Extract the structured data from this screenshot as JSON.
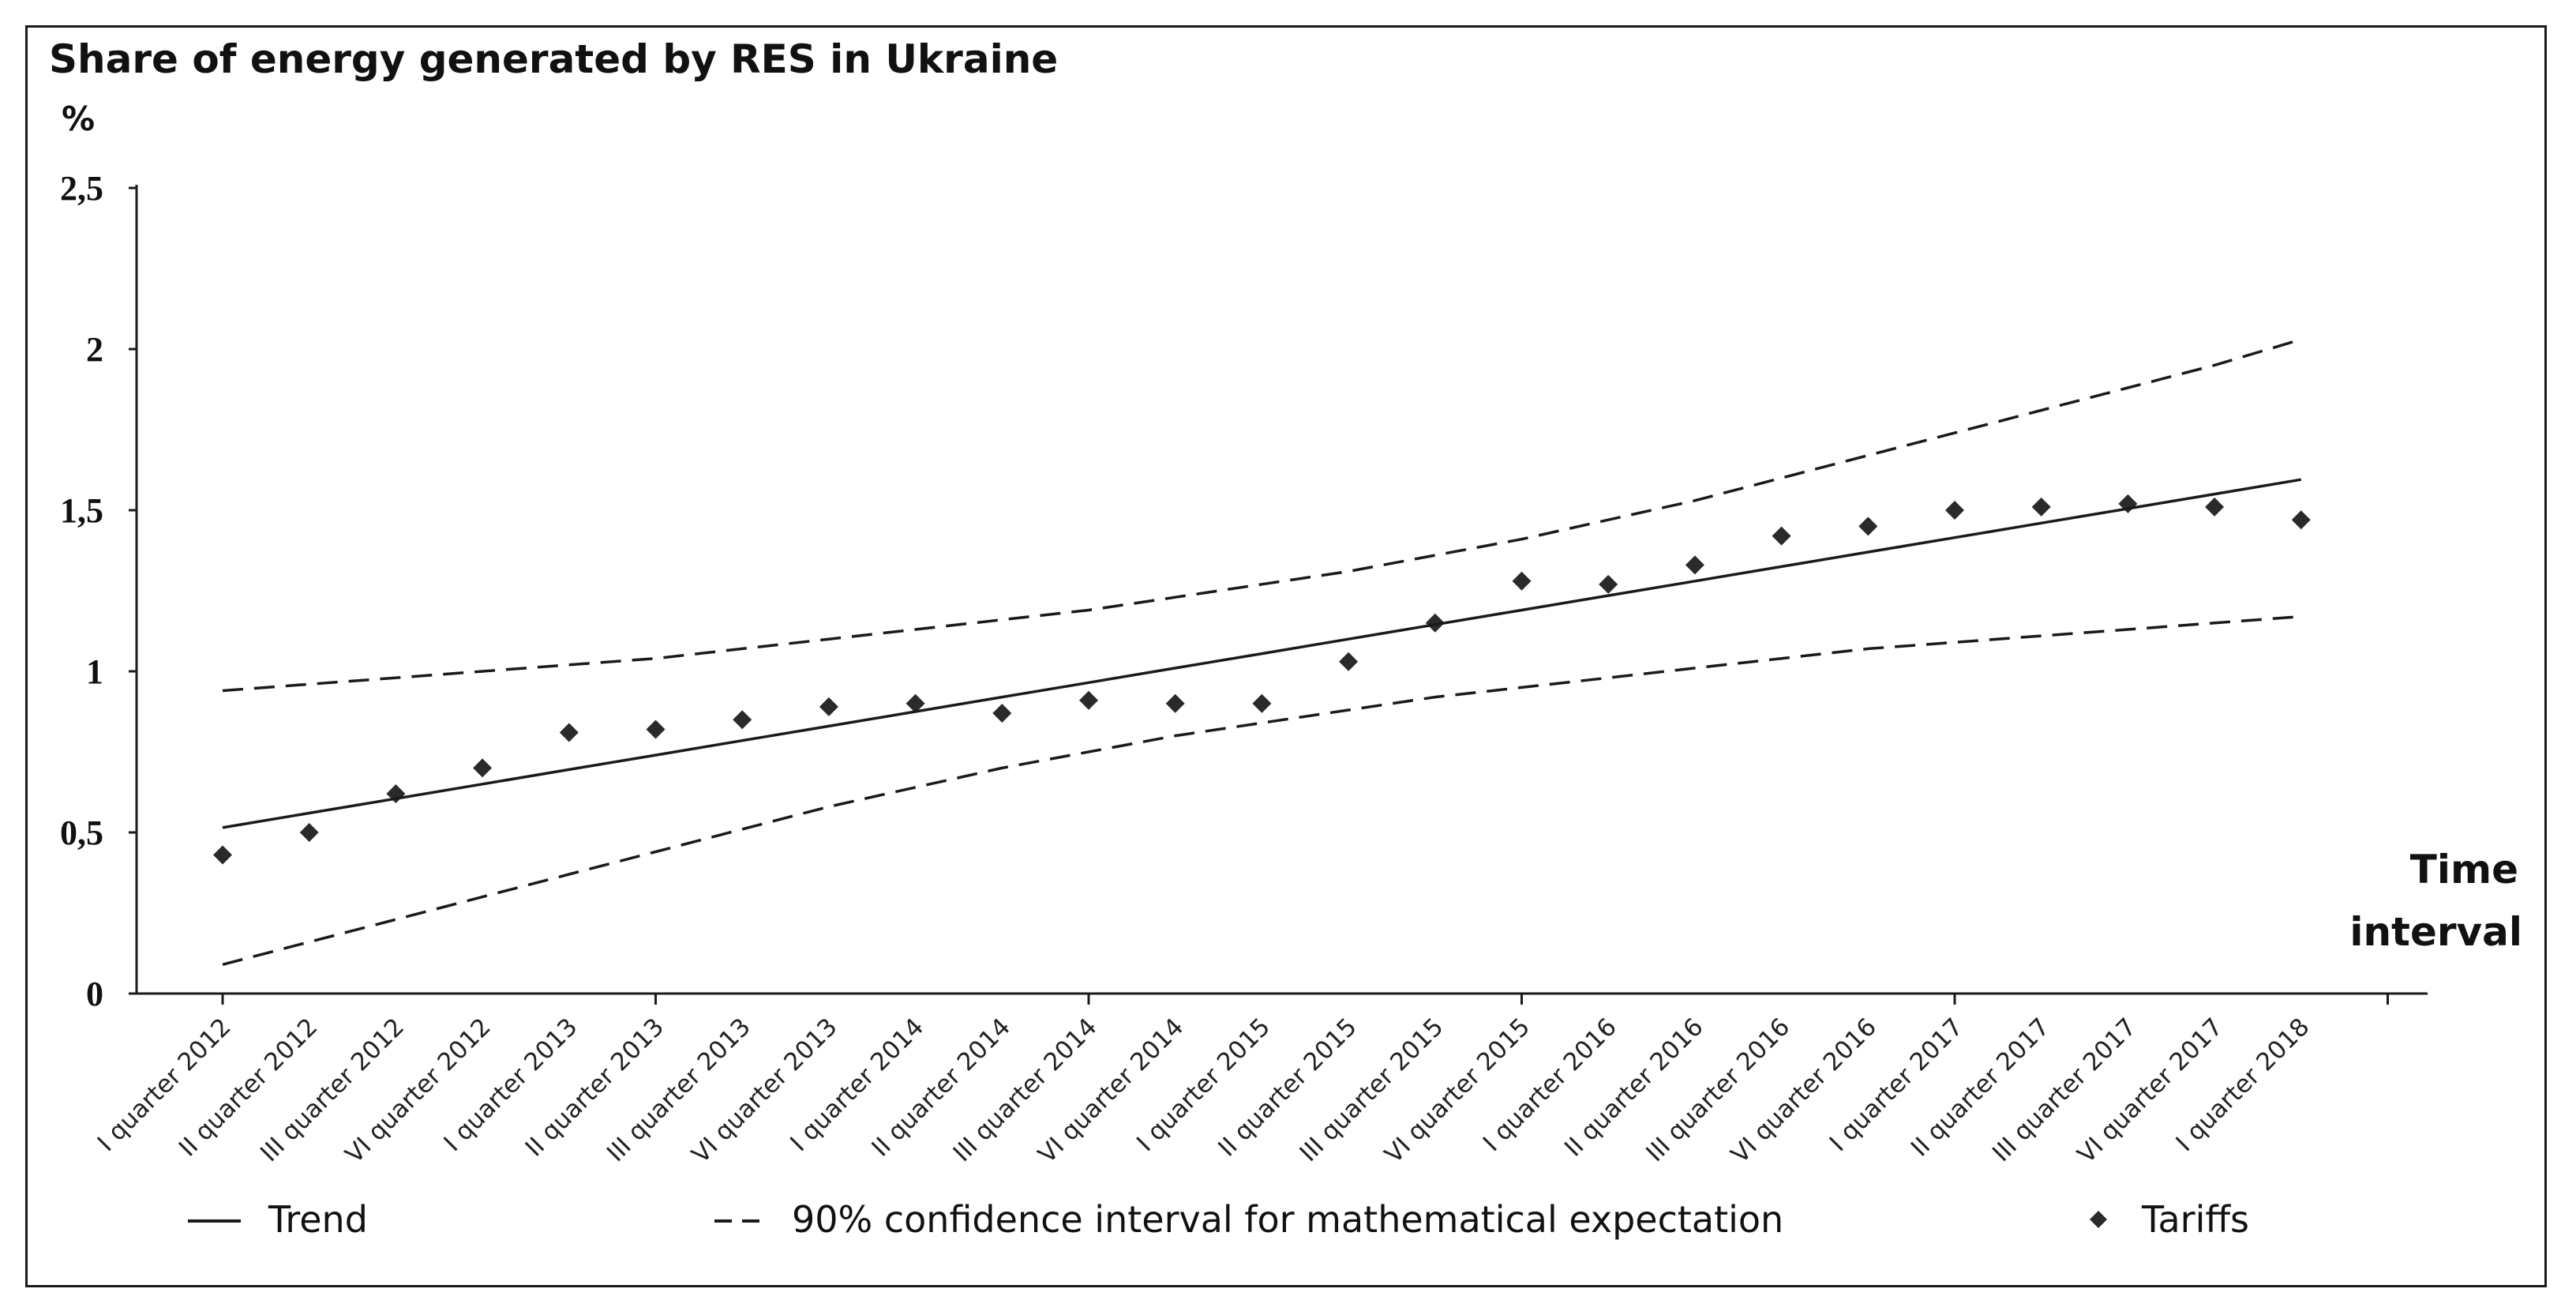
{
  "chart_data": {
    "type": "scatter",
    "title": "Share of energy generated by RES in Ukraine",
    "ylabel": "%",
    "xlabel": [
      "Time",
      "interval"
    ],
    "ylim": [
      0,
      2.5
    ],
    "yticks": [
      {
        "value": 0,
        "label": "0"
      },
      {
        "value": 0.5,
        "label": "0,5"
      },
      {
        "value": 1,
        "label": "1"
      },
      {
        "value": 1.5,
        "label": "1,5"
      },
      {
        "value": 2,
        "label": "2"
      },
      {
        "value": 2.5,
        "label": "2,5"
      }
    ],
    "categories": [
      "I quarter 2012",
      "II quarter 2012",
      "III quarter 2012",
      "VI quarter 2012",
      "I quarter 2013",
      "II quarter 2013",
      "III quarter 2013",
      "VI quarter 2013",
      "I quarter 2014",
      "II quarter 2014",
      "III quarter 2014",
      "VI quarter 2014",
      "I quarter 2015",
      "II quarter 2015",
      "III quarter 2015",
      "VI quarter 2015",
      "I quarter 2016",
      "II quarter 2016",
      "III quarter 2016",
      "VI quarter 2016",
      "I quarter 2017",
      "II quarter 2017",
      "III quarter 2017",
      "VI quarter 2017",
      "I quarter 2018"
    ],
    "major_tick_indices": [
      0,
      5,
      10,
      15,
      20,
      25
    ],
    "series": [
      {
        "name": "Tariffs",
        "style": "markers",
        "values": [
          0.43,
          0.5,
          0.62,
          0.7,
          0.81,
          0.82,
          0.85,
          0.89,
          0.9,
          0.87,
          0.91,
          0.9,
          0.9,
          1.03,
          1.15,
          1.28,
          1.27,
          1.33,
          1.42,
          1.45,
          1.5,
          1.51,
          1.52,
          1.51,
          1.47
        ]
      },
      {
        "name": "Trend",
        "style": "solid",
        "values": [
          0.515,
          0.56,
          0.605,
          0.65,
          0.695,
          0.74,
          0.785,
          0.83,
          0.875,
          0.92,
          0.965,
          1.01,
          1.055,
          1.1,
          1.145,
          1.19,
          1.235,
          1.28,
          1.325,
          1.37,
          1.415,
          1.46,
          1.505,
          1.55,
          1.595
        ]
      },
      {
        "name": "90% upper",
        "style": "dashed",
        "values": [
          0.94,
          0.96,
          0.98,
          1.0,
          1.02,
          1.04,
          1.07,
          1.1,
          1.13,
          1.16,
          1.19,
          1.23,
          1.27,
          1.31,
          1.36,
          1.41,
          1.47,
          1.53,
          1.6,
          1.67,
          1.74,
          1.81,
          1.88,
          1.95,
          2.03
        ]
      },
      {
        "name": "90% lower",
        "style": "dashed",
        "values": [
          0.09,
          0.16,
          0.23,
          0.3,
          0.37,
          0.44,
          0.51,
          0.58,
          0.64,
          0.7,
          0.75,
          0.8,
          0.84,
          0.88,
          0.92,
          0.95,
          0.98,
          1.01,
          1.04,
          1.07,
          1.09,
          1.11,
          1.13,
          1.15,
          1.17
        ]
      }
    ],
    "legend": {
      "position": "bottom",
      "items": [
        {
          "label": "Trend",
          "style": "solid"
        },
        {
          "label": "90% confidence interval for mathematical expectation",
          "style": "dashed"
        },
        {
          "label": "Tariffs",
          "style": "diamond"
        }
      ]
    },
    "colors": {
      "line": "#1a1a1a",
      "marker": "#2a2a2a"
    }
  }
}
